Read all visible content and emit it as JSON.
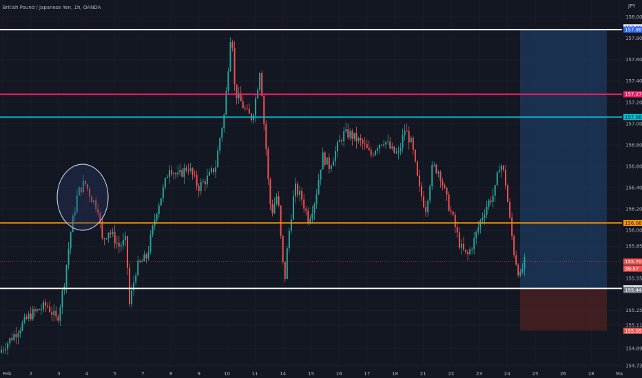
{
  "header": {
    "symbol_title": "British Pound / Japanese Yen, 1h, OANDA",
    "currency": "JPY"
  },
  "colors": {
    "background": "#131722",
    "up": "#26a69a",
    "down": "#ef5350",
    "white_line": "#ffffff",
    "pink_line": "#e91e63",
    "cyan_line": "#00bcd4",
    "orange_line": "#ff9800",
    "target_zone": "#1e3a5f",
    "stop_zone": "#4a2020"
  },
  "chart_data": {
    "type": "candlestick",
    "ylim": [
      154.73,
      158.03
    ],
    "y_ticks": [
      "158.000",
      "157.800",
      "157.600",
      "157.400",
      "157.200",
      "157.000",
      "156.800",
      "156.600",
      "156.400",
      "156.200",
      "156.000",
      "155.850",
      "155.550",
      "155.250",
      "155.110",
      "154.890",
      "154.730"
    ],
    "x_ticks": [
      "Feb",
      "2",
      "3",
      "4",
      "5",
      "7",
      "8",
      "9",
      "10",
      "11",
      "14",
      "15",
      "16",
      "17",
      "18",
      "21",
      "22",
      "23",
      "24",
      "25",
      "26",
      "28",
      "Ma"
    ],
    "horizontal_lines": [
      {
        "name": "resistance-top",
        "value": 157.881,
        "color": "#ffffff",
        "label": "157.881"
      },
      {
        "name": "pink-level",
        "value": 157.275,
        "color": "#e91e63",
        "label": "157.275"
      },
      {
        "name": "cyan-level",
        "value": 157.061,
        "color": "#00bcd4",
        "label": "157.061"
      },
      {
        "name": "orange-level",
        "value": 156.068,
        "color": "#ff9800",
        "label": "156.068"
      },
      {
        "name": "support-bottom",
        "value": 155.454,
        "color": "#ffffff",
        "label": "155.454"
      }
    ],
    "price_badges": [
      {
        "value": 157.902,
        "label": "157.902",
        "bg": "#ffffff",
        "fg": "#131722"
      },
      {
        "value": 157.881,
        "label": "157.881",
        "bg": "#2962ff",
        "fg": "#ffffff"
      },
      {
        "value": 157.275,
        "label": "157.275",
        "bg": "#e91e63",
        "fg": "#ffffff"
      },
      {
        "value": 157.061,
        "label": "157.061",
        "bg": "#00bcd4",
        "fg": "#131722"
      },
      {
        "value": 156.068,
        "label": "156.068",
        "bg": "#ff9800",
        "fg": "#131722"
      },
      {
        "value": 155.705,
        "label": "155.705",
        "bg": "#ef5350",
        "fg": "#ffffff"
      },
      {
        "value": 155.64,
        "label": "39:57",
        "bg": "#ef5350",
        "fg": "#ffffff"
      },
      {
        "value": 155.454,
        "label": "155.454",
        "bg": "#ffffff",
        "fg": "#131722"
      },
      {
        "value": 155.44,
        "label": "155.440",
        "bg": "#787b86",
        "fg": "#ffffff"
      },
      {
        "value": 155.057,
        "label": "155.057",
        "bg": "#ef5350",
        "fg": "#ffffff"
      }
    ],
    "current_price": 155.705,
    "position": {
      "entry": 155.454,
      "target": 157.881,
      "stop": 155.057
    },
    "path_points": [
      [
        0,
        154.85
      ],
      [
        20,
        155.0
      ],
      [
        45,
        155.2
      ],
      [
        70,
        155.3
      ],
      [
        85,
        155.15
      ],
      [
        95,
        155.5
      ],
      [
        105,
        156.0
      ],
      [
        115,
        156.35
      ],
      [
        125,
        156.45
      ],
      [
        135,
        156.3
      ],
      [
        145,
        156.2
      ],
      [
        150,
        155.9
      ],
      [
        160,
        156.0
      ],
      [
        175,
        155.85
      ],
      [
        185,
        155.9
      ],
      [
        190,
        155.3
      ],
      [
        200,
        155.65
      ],
      [
        215,
        155.75
      ],
      [
        230,
        156.2
      ],
      [
        240,
        156.4
      ],
      [
        248,
        156.6
      ],
      [
        260,
        156.5
      ],
      [
        275,
        156.6
      ],
      [
        290,
        156.4
      ],
      [
        305,
        156.5
      ],
      [
        315,
        156.6
      ],
      [
        322,
        156.9
      ],
      [
        328,
        157.1
      ],
      [
        333,
        157.5
      ],
      [
        338,
        157.95
      ],
      [
        343,
        157.3
      ],
      [
        352,
        157.2
      ],
      [
        360,
        157.1
      ],
      [
        368,
        157.05
      ],
      [
        375,
        157.3
      ],
      [
        380,
        157.55
      ],
      [
        384,
        157.1
      ],
      [
        388,
        156.8
      ],
      [
        392,
        156.4
      ],
      [
        396,
        156.15
      ],
      [
        405,
        156.35
      ],
      [
        410,
        155.9
      ],
      [
        415,
        155.5
      ],
      [
        420,
        155.9
      ],
      [
        430,
        156.4
      ],
      [
        440,
        156.3
      ],
      [
        450,
        156.1
      ],
      [
        460,
        156.3
      ],
      [
        470,
        156.7
      ],
      [
        480,
        156.6
      ],
      [
        490,
        156.75
      ],
      [
        500,
        156.9
      ],
      [
        510,
        156.9
      ],
      [
        520,
        156.85
      ],
      [
        530,
        156.8
      ],
      [
        540,
        156.7
      ],
      [
        550,
        156.8
      ],
      [
        560,
        156.85
      ],
      [
        570,
        156.75
      ],
      [
        580,
        156.7
      ],
      [
        590,
        156.95
      ],
      [
        600,
        156.8
      ],
      [
        610,
        156.4
      ],
      [
        620,
        156.2
      ],
      [
        630,
        156.6
      ],
      [
        640,
        156.55
      ],
      [
        650,
        156.3
      ],
      [
        660,
        156.1
      ],
      [
        670,
        155.85
      ],
      [
        680,
        155.75
      ],
      [
        690,
        155.9
      ],
      [
        700,
        156.1
      ],
      [
        710,
        156.25
      ],
      [
        720,
        156.35
      ],
      [
        728,
        156.65
      ],
      [
        735,
        156.5
      ],
      [
        742,
        156.1
      ],
      [
        748,
        155.8
      ],
      [
        753,
        155.65
      ],
      [
        758,
        155.55
      ],
      [
        762,
        155.7
      ]
    ]
  }
}
